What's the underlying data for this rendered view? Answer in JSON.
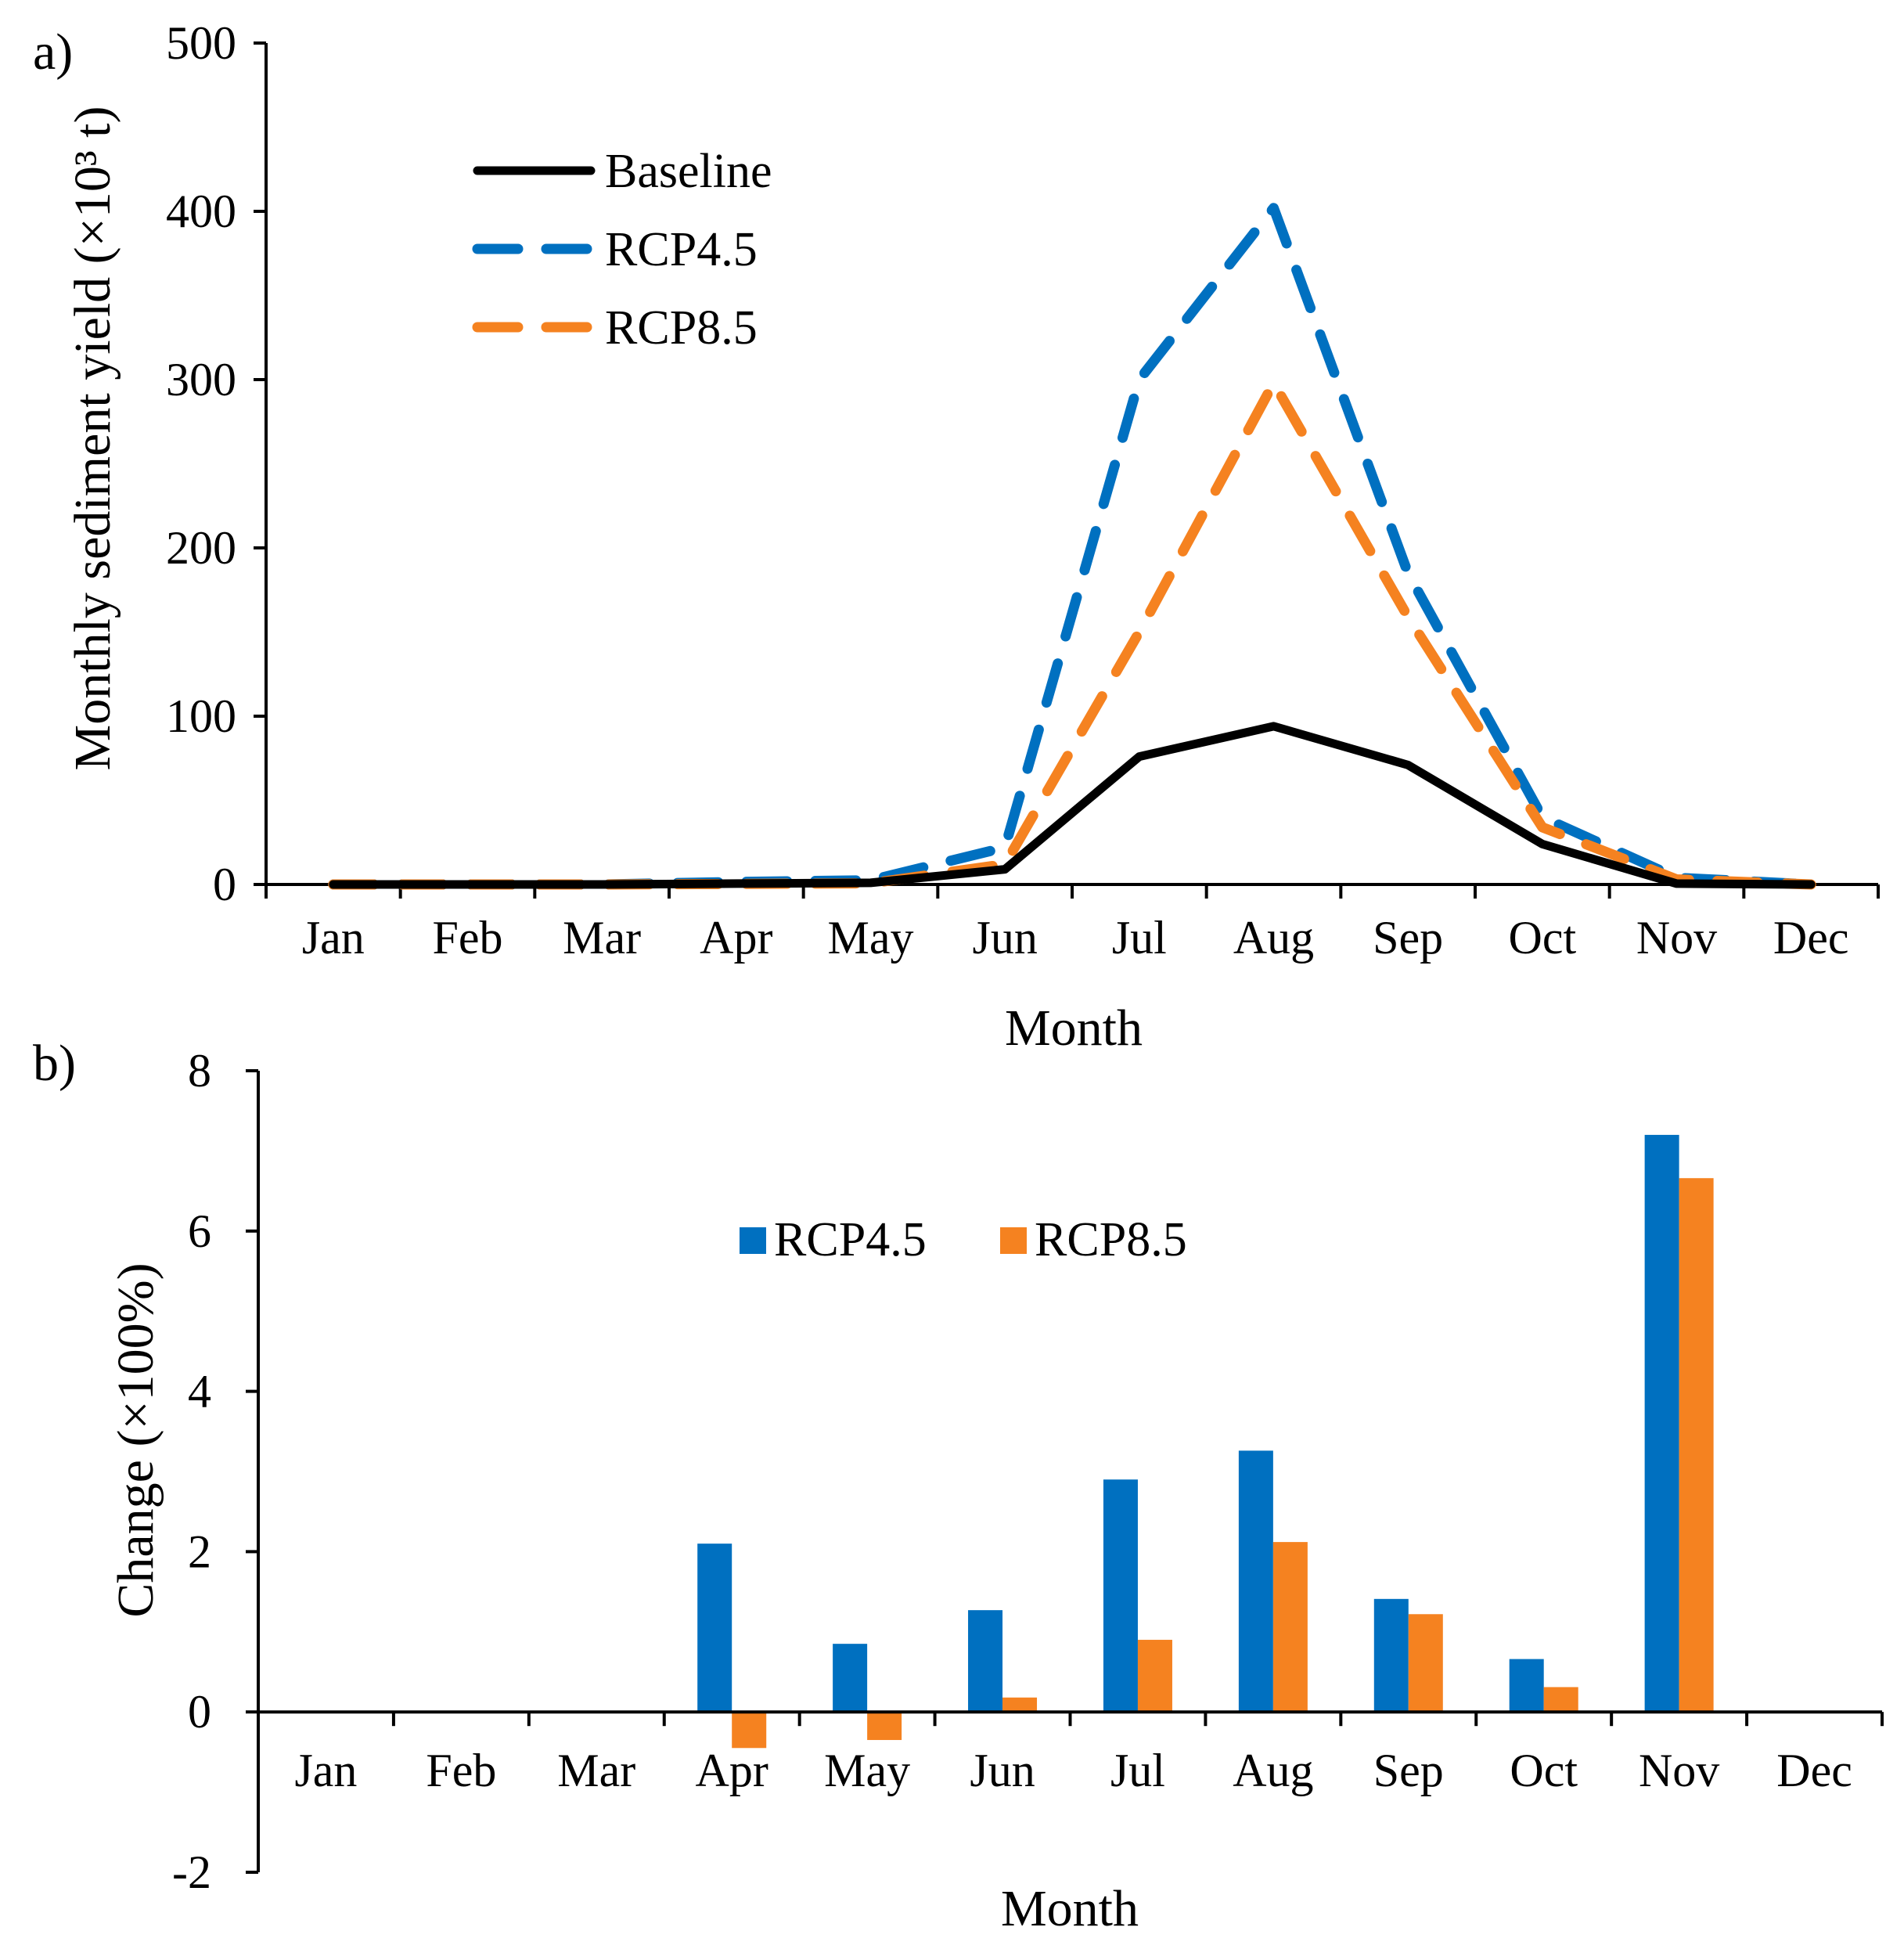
{
  "chart_data": [
    {
      "panel": "a)",
      "type": "line",
      "categories": [
        "Jan",
        "Feb",
        "Mar",
        "Apr",
        "May",
        "Jun",
        "Jul",
        "Aug",
        "Sep",
        "Oct",
        "Nov",
        "Dec"
      ],
      "series": [
        {
          "name": "Baseline",
          "color": "#000000",
          "style": "solid",
          "values": [
            0,
            0,
            0,
            0.5,
            1,
            9,
            76,
            94,
            71,
            24,
            0.5,
            0
          ]
        },
        {
          "name": "RCP4.5",
          "color": "#0070C0",
          "style": "dashed",
          "values": [
            0,
            0,
            0,
            1.5,
            2.5,
            22,
            300,
            402,
            185,
            40,
            4,
            0
          ]
        },
        {
          "name": "RCP8.5",
          "color": "#F58220",
          "style": "dashed",
          "values": [
            0,
            0,
            0,
            0.3,
            0.7,
            12,
            150,
            298,
            159,
            34,
            3,
            0
          ]
        }
      ],
      "xlabel": "Month",
      "ylabel": "Monthly sediment yield (×10³ t)",
      "ylim": [
        0,
        500
      ],
      "yticks": [
        "0",
        "100",
        "200",
        "300",
        "400",
        "500"
      ],
      "legend": "upper-left",
      "grid": false
    },
    {
      "panel": "b)",
      "type": "bar",
      "categories": [
        "Jan",
        "Feb",
        "Mar",
        "Apr",
        "May",
        "Jun",
        "Jul",
        "Aug",
        "Sep",
        "Oct",
        "Nov",
        "Dec"
      ],
      "series": [
        {
          "name": "RCP4.5",
          "color": "#0070C0",
          "values": [
            0,
            0,
            0,
            2.1,
            0.85,
            1.27,
            2.9,
            3.26,
            1.41,
            0.66,
            7.2,
            0
          ]
        },
        {
          "name": "RCP8.5",
          "color": "#F58220",
          "values": [
            0,
            0,
            0,
            -0.45,
            -0.35,
            0.18,
            0.9,
            2.12,
            1.22,
            0.31,
            6.66,
            0
          ]
        }
      ],
      "xlabel": "Month",
      "ylabel": "Change (×100%)",
      "ylim": [
        -2,
        8
      ],
      "yticks": [
        "-2",
        "0",
        "2",
        "4",
        "6",
        "8"
      ],
      "legend": "upper-center",
      "grid": false
    }
  ]
}
